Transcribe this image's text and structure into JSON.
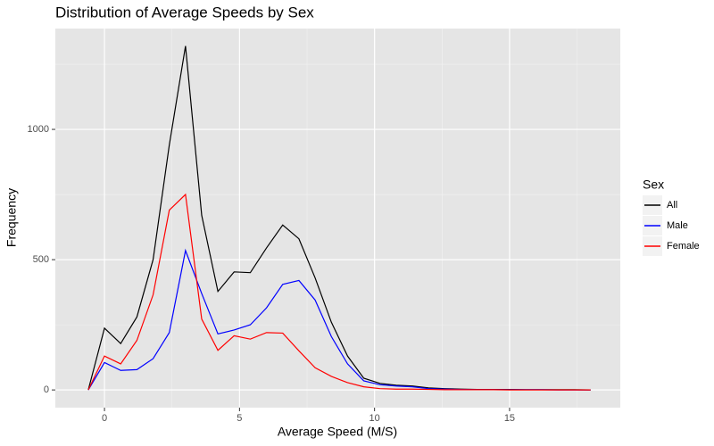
{
  "chart_data": {
    "type": "line",
    "title": "Distribution of Average Speeds by Sex",
    "x_label": "Average Speed (M/S)",
    "y_label": "Frequency",
    "legend_title": "Sex",
    "legend_position": "right",
    "grid": true,
    "x": [
      -0.6,
      0,
      0.6,
      1.2,
      1.8,
      2.4,
      3.0,
      3.6,
      4.2,
      4.8,
      5.4,
      6.0,
      6.6,
      7.2,
      7.8,
      8.4,
      9.0,
      9.6,
      10.2,
      10.8,
      11.4,
      12.0,
      12.6,
      13.2,
      13.8,
      14.4,
      15.0,
      15.6,
      16.2,
      16.8,
      17.4,
      18.0
    ],
    "series": [
      {
        "name": "All",
        "color": "#000000",
        "values": [
          0,
          237,
          178,
          280,
          500,
          940,
          1320,
          670,
          378,
          453,
          450,
          545,
          633,
          580,
          430,
          260,
          130,
          45,
          25,
          18,
          15,
          8,
          5,
          3,
          2,
          2,
          2,
          1,
          1,
          1,
          1,
          0
        ]
      },
      {
        "name": "Male",
        "color": "#0000ff",
        "values": [
          0,
          105,
          75,
          78,
          120,
          220,
          535,
          370,
          215,
          230,
          250,
          315,
          405,
          420,
          345,
          205,
          100,
          35,
          20,
          15,
          12,
          5,
          3,
          2,
          1,
          1,
          1,
          1,
          1,
          0,
          0,
          0
        ]
      },
      {
        "name": "Female",
        "color": "#ff0000",
        "values": [
          0,
          130,
          100,
          190,
          365,
          690,
          750,
          272,
          152,
          208,
          195,
          220,
          218,
          150,
          85,
          52,
          28,
          12,
          5,
          3,
          3,
          2,
          1,
          1,
          1,
          1,
          0,
          0,
          0,
          0,
          0,
          0
        ]
      }
    ],
    "xlim": [
      -1.82,
      19.1
    ],
    "ylim": [
      -68,
      1387
    ],
    "xticks": [
      0,
      5,
      10,
      15
    ],
    "yticks": [
      0,
      500,
      1000
    ],
    "minor_xticks": [
      2.5,
      7.5,
      12.5,
      17.5
    ],
    "minor_yticks": [
      250,
      750,
      1250
    ]
  }
}
